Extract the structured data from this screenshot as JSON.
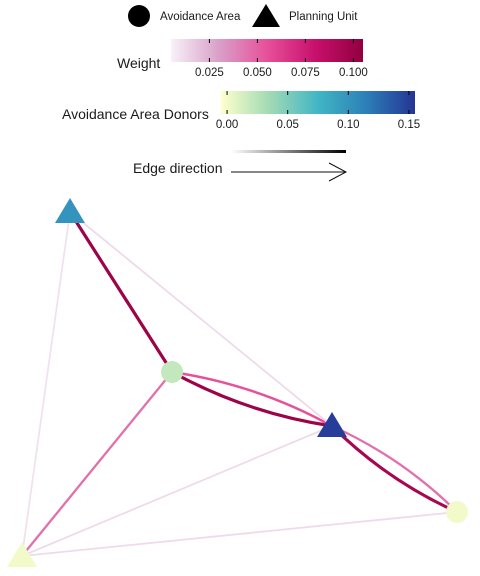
{
  "chart_data": {
    "type": "network",
    "legend": {
      "shape": {
        "items": [
          {
            "label": "Avoidance Area",
            "symbol": "circle"
          },
          {
            "label": "Planning Unit",
            "symbol": "triangle"
          }
        ]
      },
      "weight": {
        "title": "Weight",
        "range": [
          0.005,
          0.105
        ],
        "ticks": [
          "0.025",
          "0.050",
          "0.075",
          "0.100"
        ],
        "colors": [
          "#f7f1f8",
          "#d9a0c8",
          "#e7509a",
          "#c8106c",
          "#91003f"
        ]
      },
      "donors": {
        "title": "Avoidance Area Donors",
        "range": [
          -0.005,
          0.155
        ],
        "ticks": [
          "0.00",
          "0.05",
          "0.10",
          "0.15"
        ],
        "colors": [
          "#ffffcc",
          "#a1dab4",
          "#41b6c4",
          "#2c7fb8",
          "#253494"
        ]
      },
      "direction": {
        "title": "Edge direction"
      }
    },
    "nodes": [
      {
        "id": "A",
        "type": "Planning Unit",
        "donors": 0.1
      },
      {
        "id": "B",
        "type": "Avoidance Area",
        "donors": 0.02
      },
      {
        "id": "C",
        "type": "Planning Unit",
        "donors": 0.15
      },
      {
        "id": "D",
        "type": "Avoidance Area",
        "donors": 0.0
      },
      {
        "id": "E",
        "type": "Planning Unit",
        "donors": 0.0
      }
    ],
    "edges": [
      {
        "from": "A",
        "to": "B",
        "weight": 0.1
      },
      {
        "from": "B",
        "to": "C",
        "weight": 0.1
      },
      {
        "from": "C",
        "to": "B",
        "weight": 0.055
      },
      {
        "from": "C",
        "to": "D",
        "weight": 0.095
      },
      {
        "from": "D",
        "to": "C",
        "weight": 0.045
      },
      {
        "from": "B",
        "to": "E",
        "weight": 0.045
      },
      {
        "from": "A",
        "to": "C",
        "weight": 0.012
      },
      {
        "from": "A",
        "to": "E",
        "weight": 0.01
      },
      {
        "from": "E",
        "to": "C",
        "weight": 0.012
      },
      {
        "from": "E",
        "to": "D",
        "weight": 0.012
      }
    ]
  }
}
